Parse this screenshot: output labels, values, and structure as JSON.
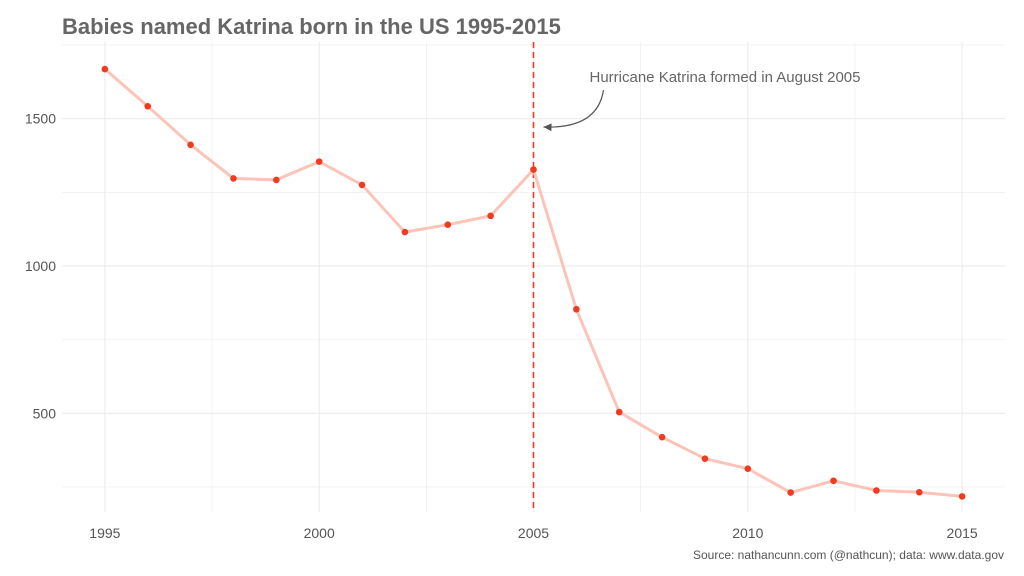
{
  "chart_data": {
    "type": "line",
    "title": "Babies named Katrina born in the US 1995-2015",
    "xlabel": "",
    "ylabel": "",
    "caption": "Source: nathancunn.com (@nathcun); data: www.data.gov",
    "x": [
      1995,
      1996,
      1997,
      1998,
      1999,
      2000,
      2001,
      2002,
      2003,
      2004,
      2005,
      2006,
      2007,
      2008,
      2009,
      2010,
      2011,
      2012,
      2013,
      2014,
      2015
    ],
    "series": [
      {
        "values": [
          1668,
          1542,
          1411,
          1297,
          1292,
          1354,
          1275,
          1115,
          1140,
          1170,
          1327,
          853,
          504,
          419,
          346,
          312,
          231,
          271,
          238,
          232,
          218
        ]
      }
    ],
    "xticks": [
      1995,
      2000,
      2005,
      2010,
      2015
    ],
    "yticks": [
      500,
      1000,
      1500
    ],
    "xlim": [
      1994,
      2016
    ],
    "ylim": [
      165,
      1760
    ],
    "grid": true,
    "vline": {
      "x": 2005,
      "color": "#f03b20"
    },
    "annotation": {
      "text": "Hurricane Katrina formed in August 2005",
      "x": 2005,
      "y": 1450
    },
    "colors": {
      "line": "#fcc4b8",
      "point": "#f03b20",
      "grid": "#ebebeb"
    }
  }
}
